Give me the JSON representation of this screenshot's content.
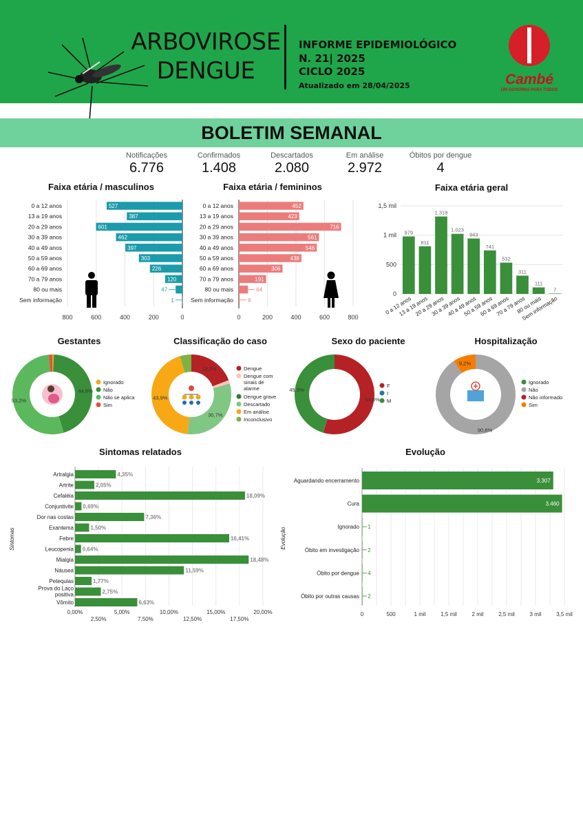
{
  "header": {
    "title_line1": "ARBOVIROSE",
    "title_line2": "DENGUE",
    "info_line1": "INFORME EPIDEMIOLÓGICO",
    "info_line2": "N. 21| 2025",
    "info_line3": "CICLO 2025",
    "info_line4": "Atualizado em 28/04/2025",
    "logo_text": "Cambé",
    "logo_sub": "UM GOVERNO PARA TODOS"
  },
  "banner": "BOLETIM SEMANAL",
  "kpis": [
    {
      "label": "Notificações",
      "value": "6.776"
    },
    {
      "label": "Confirmados",
      "value": "1.408"
    },
    {
      "label": "Descartados",
      "value": "2.080"
    },
    {
      "label": "Em análise",
      "value": "2.972"
    },
    {
      "label": "Óbitos por dengue",
      "value": "4"
    }
  ],
  "colors": {
    "green": "#1fa64a",
    "teal": "#1b9bab",
    "salmon": "#ec7c7c",
    "bar_green": "#3a8f3a"
  },
  "chart_data": [
    {
      "type": "bar",
      "orientation": "horizontal-reversed",
      "title": "Faixa etária / masculinos",
      "categories": [
        "0 a 12 anos",
        "13 a 19 anos",
        "20 a 29 anos",
        "30 a 39 anos",
        "40 a 49 anos",
        "50 a 59 anos",
        "60 a 69 anos",
        "70 a 79 anos",
        "80 ou mais",
        "Sem informação"
      ],
      "values": [
        527,
        387,
        601,
        462,
        397,
        303,
        226,
        120,
        47,
        1
      ],
      "xticks": [
        "800",
        "600",
        "400",
        "200",
        "0"
      ],
      "xlim": [
        0,
        800
      ],
      "color": "#1b9bab"
    },
    {
      "type": "bar",
      "orientation": "horizontal",
      "title": "Faixa etária / femininos",
      "categories": [
        "0 a 12 anos",
        "13 a 19 anos",
        "20 a 29 anos",
        "30 a 39 anos",
        "40 a 49 anos",
        "50 a 59 anos",
        "60 a 69 anos",
        "70 a 79 anos",
        "80 ou mais",
        "Sem informação"
      ],
      "values": [
        452,
        423,
        716,
        561,
        546,
        438,
        306,
        191,
        64,
        6
      ],
      "xticks": [
        "0",
        "200",
        "400",
        "600",
        "800"
      ],
      "xlim": [
        0,
        800
      ],
      "color": "#ec7c7c"
    },
    {
      "type": "bar",
      "orientation": "vertical",
      "title": "Faixa etária geral",
      "categories": [
        "0 a 12 anos",
        "13 a 19 anos",
        "20 a 29 anos",
        "30 a 39 anos",
        "40 a 49 anos",
        "50 a 59 anos",
        "60 a 69 anos",
        "70 a 79 anos",
        "80 ou mais",
        "Sem informação"
      ],
      "values": [
        979,
        811,
        1318,
        1023,
        943,
        741,
        532,
        311,
        111,
        7
      ],
      "value_labels": [
        "979",
        "811",
        "1.318",
        "1.023",
        "943",
        "741",
        "532",
        "311",
        "111",
        "7"
      ],
      "yticks": [
        "0",
        "500",
        "1 mil",
        "1,5 mil"
      ],
      "ylim": [
        0,
        1500
      ],
      "color": "#3a8f3a"
    },
    {
      "type": "pie",
      "title": "Gestantes",
      "labels": [
        "Ignorado",
        "Não",
        "Não se aplica",
        "Sim"
      ],
      "values": [
        0.6,
        44.8,
        53.2,
        1.4
      ],
      "shown_labels": [
        "",
        "44,8%",
        "53,2%",
        ""
      ],
      "colors": [
        "#f2a81d",
        "#3a8f3a",
        "#5cb85c",
        "#e0533b"
      ]
    },
    {
      "type": "pie",
      "title": "Classificação do caso",
      "labels": [
        "Dengue",
        "Dengue com sinais de alarme",
        "Dengue grave",
        "Descartado",
        "Em análise",
        "Inconclusivo"
      ],
      "values": [
        19.2,
        1.5,
        0.1,
        30.7,
        43.9,
        4.6
      ],
      "shown_labels": [
        "19,2%",
        "",
        "",
        "30,7%",
        "43,9%",
        ""
      ],
      "colors": [
        "#b52226",
        "#f7c6b8",
        "#2e7d32",
        "#81c784",
        "#f7a814",
        "#7cb342"
      ]
    },
    {
      "type": "pie",
      "title": "Sexo do paciente",
      "labels": [
        "F",
        "I",
        "M"
      ],
      "values": [
        54.6,
        0.1,
        45.3
      ],
      "shown_labels": [
        "54,6%",
        "",
        "45,3%"
      ],
      "colors": [
        "#b52226",
        "#1f7aa8",
        "#3a8f3a"
      ]
    },
    {
      "type": "pie",
      "title": "Hospitalização",
      "labels": [
        "Ignorado",
        "Não",
        "Não informado",
        "Sim"
      ],
      "values": [
        0.01,
        90.8,
        0.01,
        9.18
      ],
      "shown_labels": [
        "",
        "90,8%",
        "",
        "9,2%"
      ],
      "colors": [
        "#3a8f3a",
        "#a5a5a5",
        "#b52226",
        "#f57c00"
      ]
    },
    {
      "type": "bar",
      "orientation": "horizontal",
      "title": "Sintomas relatados",
      "ylabel": "Sintomas",
      "categories": [
        "Artralgia",
        "Artrite",
        "Cefaléia",
        "Conjuntivite",
        "Dor nas costas",
        "Exantema",
        "Febre",
        "Leucopenia",
        "Mialgia",
        "Náusea",
        "Petequias",
        "Prova do Laço positiva",
        "Vômito"
      ],
      "values": [
        4.35,
        2.05,
        18.09,
        0.69,
        7.36,
        1.5,
        16.41,
        0.64,
        18.48,
        11.59,
        1.77,
        2.75,
        6.63
      ],
      "value_labels": [
        "4,35%",
        "2,05%",
        "18,09%",
        "0,69%",
        "7,36%",
        "1,50%",
        "16,41%",
        "0,64%",
        "18,48%",
        "11,59%",
        "1,77%",
        "2,75%",
        "6,63%"
      ],
      "xticks_upper": [
        "0,00%",
        "5,00%",
        "10,00%",
        "15,00%",
        "20,00%"
      ],
      "xticks_lower": [
        "2,50%",
        "7,50%",
        "12,50%",
        "17,50%"
      ],
      "xlim": [
        0,
        20
      ],
      "color": "#3a8f3a"
    },
    {
      "type": "bar",
      "orientation": "horizontal",
      "title": "Evolução",
      "ylabel": "Evolução",
      "categories": [
        "Aguardando encerramento",
        "Cura",
        "Ignorado",
        "Óbito em investigação",
        "Óbito por dengue",
        "Óbito por outras causas"
      ],
      "values": [
        3307,
        3460,
        1,
        2,
        4,
        2
      ],
      "value_labels": [
        "3.307",
        "3.460",
        "1",
        "2",
        "4",
        "2"
      ],
      "xticks": [
        "0",
        "500",
        "1 mil",
        "1,5 mil",
        "2 mil",
        "2,5 mil",
        "3 mil",
        "3,5 mil"
      ],
      "xlim": [
        0,
        3500
      ],
      "color": "#3a8f3a"
    }
  ]
}
